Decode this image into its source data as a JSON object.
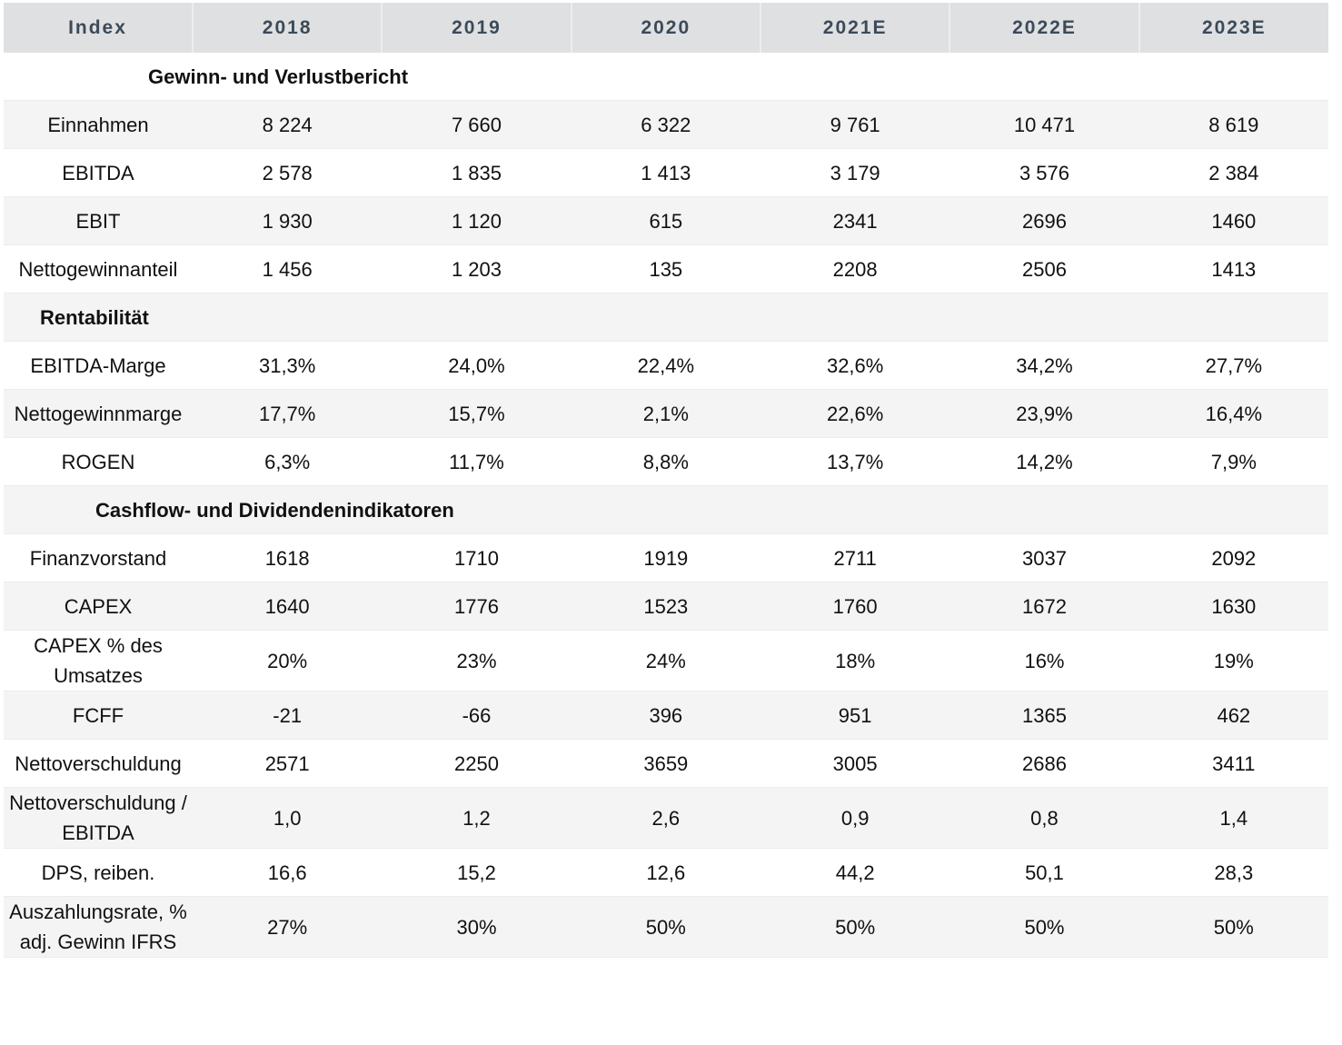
{
  "header": [
    "Index",
    "2018",
    "2019",
    "2020",
    "2021E",
    "2022E",
    "2023E"
  ],
  "sections": [
    {
      "title": "Gewinn- und Verlustbericht",
      "rows": [
        {
          "label": "Einnahmen",
          "values": [
            "8 224",
            "7 660",
            "6 322",
            "9 761",
            "10 471",
            "8 619"
          ]
        },
        {
          "label": "EBITDA",
          "values": [
            "2 578",
            "1 835",
            "1 413",
            "3 179",
            "3 576",
            "2 384"
          ]
        },
        {
          "label": "EBIT",
          "values": [
            "1 930",
            "1 120",
            "615",
            "2341",
            "2696",
            "1460"
          ]
        },
        {
          "label": "Nettogewinnanteil",
          "values": [
            "1 456",
            "1 203",
            "135",
            "2208",
            "2506",
            "1413"
          ]
        }
      ]
    },
    {
      "title": "Rentabilität",
      "rows": [
        {
          "label": "EBITDA-Marge",
          "values": [
            "31,3%",
            "24,0%",
            "22,4%",
            "32,6%",
            "34,2%",
            "27,7%"
          ]
        },
        {
          "label": "Nettogewinnmarge",
          "values": [
            "17,7%",
            "15,7%",
            "2,1%",
            "22,6%",
            "23,9%",
            "16,4%"
          ]
        },
        {
          "label": "ROGEN",
          "values": [
            "6,3%",
            "11,7%",
            "8,8%",
            "13,7%",
            "14,2%",
            "7,9%"
          ]
        }
      ]
    },
    {
      "title": "Cashflow- und Dividendenindikatoren",
      "rows": [
        {
          "label": "Finanzvorstand",
          "values": [
            "1618",
            "1710",
            "1919",
            "2711",
            "3037",
            "2092"
          ]
        },
        {
          "label": "CAPEX",
          "values": [
            "1640",
            "1776",
            "1523",
            "1760",
            "1672",
            "1630"
          ]
        },
        {
          "label": "CAPEX % des Umsatzes",
          "values": [
            "20%",
            "23%",
            "24%",
            "18%",
            "16%",
            "19%"
          ]
        },
        {
          "label": "FCFF",
          "values": [
            "-21",
            "-66",
            "396",
            "951",
            "1365",
            "462"
          ]
        },
        {
          "label": "Nettoverschuldung",
          "values": [
            "2571",
            "2250",
            "3659",
            "3005",
            "2686",
            "3411"
          ]
        },
        {
          "label": "Nettoverschuldung / EBITDA",
          "values": [
            "1,0",
            "1,2",
            "2,6",
            "0,9",
            "0,8",
            "1,4"
          ]
        },
        {
          "label": "DPS, reiben.",
          "values": [
            "16,6",
            "15,2",
            "12,6",
            "44,2",
            "50,1",
            "28,3"
          ]
        },
        {
          "label": "Auszahlungsrate, % adj. Gewinn IFRS",
          "values": [
            "27%",
            "30%",
            "50%",
            "50%",
            "50%",
            "50%"
          ]
        }
      ]
    }
  ]
}
